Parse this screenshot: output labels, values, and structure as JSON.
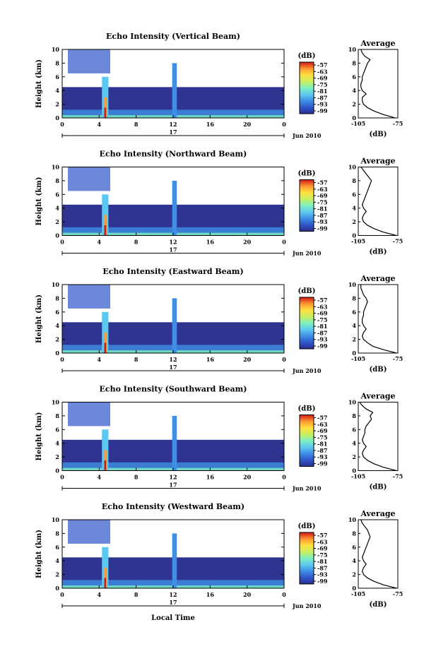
{
  "figure": {
    "xlabel": "Local Time",
    "date_label": "17",
    "month_year": "Jun 2010",
    "ylabel": "Height (km)",
    "cbar_unit": "(dB)",
    "avg_title": "Average",
    "avg_xlabel": "(dB)"
  },
  "chart_data": [
    {
      "type": "heatmap",
      "title": "Echo Intensity (Vertical Beam)",
      "x_ticks": [
        "0",
        "4",
        "8",
        "12",
        "16",
        "20",
        "0"
      ],
      "y_ticks": [
        "0",
        "2",
        "4",
        "6",
        "8",
        "10"
      ],
      "xlim": [
        0,
        24
      ],
      "ylim": [
        0,
        10
      ],
      "colorbar_ticks": [
        "-57",
        "-63",
        "-69",
        "-75",
        "-81",
        "-87",
        "-93",
        "-99"
      ],
      "avg_profile": {
        "xlim": [
          -105,
          -75
        ],
        "x_ticks": [
          "-105",
          "-75"
        ],
        "y_ticks": [
          "0",
          "2",
          "4",
          "6",
          "8",
          "10"
        ],
        "height": [
          0,
          0.5,
          1,
          1.5,
          2,
          2.5,
          3,
          3.5,
          4,
          4.5,
          5,
          5.5,
          6,
          6.5,
          7,
          7.5,
          8,
          8.5,
          9,
          9.5,
          10
        ],
        "db": [
          -77,
          -86,
          -93,
          -98,
          -101,
          -102,
          -102,
          -99,
          -102,
          -103,
          -103,
          -102,
          -102,
          -101,
          -100,
          -99,
          -98,
          -96,
          -100,
          -102,
          -103
        ]
      }
    },
    {
      "type": "heatmap",
      "title": "Echo Intensity (Northward Beam)",
      "x_ticks": [
        "0",
        "4",
        "8",
        "12",
        "16",
        "20",
        "0"
      ],
      "y_ticks": [
        "0",
        "2",
        "4",
        "6",
        "8",
        "10"
      ],
      "xlim": [
        0,
        24
      ],
      "ylim": [
        0,
        10
      ],
      "colorbar_ticks": [
        "-57",
        "-63",
        "-69",
        "-75",
        "-81",
        "-87",
        "-93",
        "-99"
      ],
      "avg_profile": {
        "xlim": [
          -105,
          -75
        ],
        "x_ticks": [
          "-105",
          "-75"
        ],
        "y_ticks": [
          "0",
          "2",
          "4",
          "6",
          "8",
          "10"
        ],
        "height": [
          0,
          0.5,
          1,
          1.5,
          2,
          2.5,
          3,
          3.5,
          4,
          4.5,
          5,
          5.5,
          6,
          6.5,
          7,
          7.5,
          8,
          8.5,
          9,
          9.5,
          10
        ],
        "db": [
          -76,
          -86,
          -93,
          -98,
          -101,
          -102,
          -101,
          -99,
          -101,
          -102,
          -101,
          -100,
          -99,
          -98,
          -97,
          -96,
          -95,
          -97,
          -99,
          -101,
          -103
        ]
      }
    },
    {
      "type": "heatmap",
      "title": "Echo Intensity (Eastward Beam)",
      "x_ticks": [
        "0",
        "4",
        "8",
        "12",
        "16",
        "20",
        "0"
      ],
      "y_ticks": [
        "0",
        "2",
        "4",
        "6",
        "8",
        "10"
      ],
      "xlim": [
        0,
        24
      ],
      "ylim": [
        0,
        10
      ],
      "colorbar_ticks": [
        "-57",
        "-63",
        "-69",
        "-75",
        "-81",
        "-87",
        "-93",
        "-99"
      ],
      "avg_profile": {
        "xlim": [
          -105,
          -75
        ],
        "x_ticks": [
          "-105",
          "-75"
        ],
        "y_ticks": [
          "0",
          "2",
          "4",
          "6",
          "8",
          "10"
        ],
        "height": [
          0,
          0.5,
          1,
          1.5,
          2,
          2.5,
          3,
          3.5,
          4,
          4.5,
          5,
          5.5,
          6,
          6.5,
          7,
          7.5,
          8,
          8.5,
          9,
          9.5,
          10
        ],
        "db": [
          -76,
          -86,
          -94,
          -98,
          -101,
          -102,
          -101,
          -99,
          -101,
          -102,
          -102,
          -101,
          -101,
          -100,
          -99,
          -98,
          -99,
          -101,
          -102,
          -103,
          -103
        ]
      }
    },
    {
      "type": "heatmap",
      "title": "Echo Intensity (Southward Beam)",
      "x_ticks": [
        "0",
        "4",
        "8",
        "12",
        "16",
        "20",
        "0"
      ],
      "y_ticks": [
        "0",
        "2",
        "4",
        "6",
        "8",
        "10"
      ],
      "xlim": [
        0,
        24
      ],
      "ylim": [
        0,
        10
      ],
      "colorbar_ticks": [
        "-57",
        "-63",
        "-69",
        "-75",
        "-81",
        "-87",
        "-93",
        "-99"
      ],
      "avg_profile": {
        "xlim": [
          -105,
          -75
        ],
        "x_ticks": [
          "-105",
          "-75"
        ],
        "y_ticks": [
          "0",
          "2",
          "4",
          "6",
          "8",
          "10"
        ],
        "height": [
          0,
          0.5,
          1,
          1.5,
          2,
          2.5,
          3,
          3.5,
          4,
          4.5,
          5,
          5.5,
          6,
          6.5,
          7,
          7.5,
          8,
          8.5,
          9,
          9.5,
          10
        ],
        "db": [
          -76,
          -86,
          -93,
          -98,
          -101,
          -102,
          -101,
          -99,
          -101,
          -102,
          -101,
          -100,
          -100,
          -99,
          -97,
          -95,
          -96,
          -94,
          -99,
          -102,
          -104
        ]
      }
    },
    {
      "type": "heatmap",
      "title": "Echo Intensity (Westward Beam)",
      "x_ticks": [
        "0",
        "4",
        "8",
        "12",
        "16",
        "20",
        "0"
      ],
      "y_ticks": [
        "0",
        "2",
        "4",
        "6",
        "8",
        "10"
      ],
      "xlim": [
        0,
        24
      ],
      "ylim": [
        0,
        10
      ],
      "colorbar_ticks": [
        "-57",
        "-63",
        "-69",
        "-75",
        "-81",
        "-87",
        "-93",
        "-99"
      ],
      "avg_profile": {
        "xlim": [
          -105,
          -75
        ],
        "x_ticks": [
          "-105",
          "-75"
        ],
        "y_ticks": [
          "0",
          "2",
          "4",
          "6",
          "8",
          "10"
        ],
        "height": [
          0,
          0.5,
          1,
          1.5,
          2,
          2.5,
          3,
          3.5,
          4,
          4.5,
          5,
          5.5,
          6,
          6.5,
          7,
          7.5,
          8,
          8.5,
          9,
          9.5,
          10
        ],
        "db": [
          -76,
          -86,
          -93,
          -98,
          -101,
          -102,
          -101,
          -99,
          -101,
          -102,
          -101,
          -100,
          -99,
          -98,
          -97,
          -96,
          -97,
          -98,
          -100,
          -102,
          -103
        ]
      }
    }
  ],
  "colors": {
    "scale": [
      "#2a2f8e",
      "#2f55c8",
      "#3f8fe6",
      "#5cc8f0",
      "#7ef0c0",
      "#c8f060",
      "#ffe040",
      "#ff9a30",
      "#ff3a20",
      "#d01818"
    ],
    "background": "#2f3490"
  }
}
